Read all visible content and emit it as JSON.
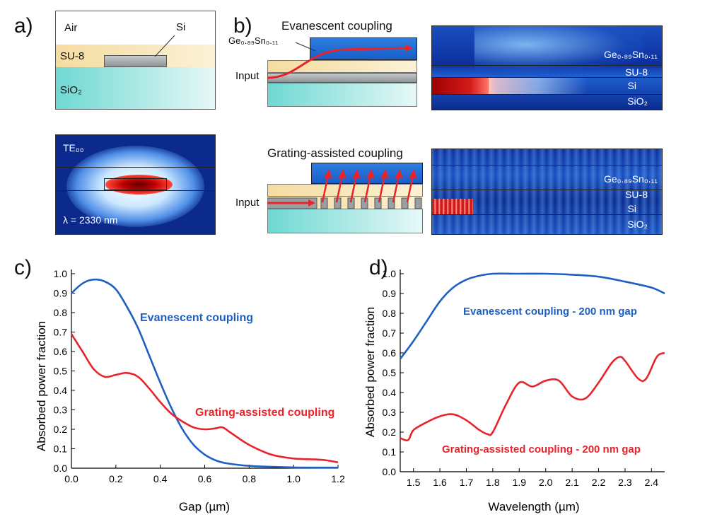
{
  "panels": {
    "a": {
      "letter": "a)",
      "air": "Air",
      "si": "Si",
      "su8": "SU-8",
      "sio2": "SiO₂",
      "mode": "TE₀₀",
      "lambda": "λ = 2330 nm"
    },
    "b": {
      "letter": "b)",
      "evanescent_title": "Evanescent coupling",
      "grating_title": "Grating-assisted coupling",
      "gesn": "Ge₀.₈₉Sn₀.₁₁",
      "input": "Input",
      "field_labels": [
        "Ge₀.₈₉Sn₀.₁₁",
        "SU-8",
        "Si",
        "SiO₂"
      ]
    },
    "c": {
      "letter": "c)",
      "evan_label": "Evanescent coupling",
      "grating_label": "Grating-assisted coupling"
    },
    "d": {
      "letter": "d)",
      "evan_label": "Evanescent coupling - 200 nm gap",
      "grating_label": "Grating-assisted coupling - 200 nm gap"
    }
  },
  "colors": {
    "evan": "#1f5fc4",
    "grating": "#e8232a"
  },
  "chart_data": [
    {
      "type": "line",
      "title": "",
      "xlabel": "Gap (µm)",
      "ylabel": "Absorbed power fraction",
      "xlim": [
        0.0,
        1.2
      ],
      "ylim": [
        0.0,
        1.0
      ],
      "xticks": [
        "0.0",
        "0.2",
        "0.4",
        "0.6",
        "0.8",
        "1.0",
        "1.2"
      ],
      "yticks": [
        "0.0",
        "0.1",
        "0.2",
        "0.3",
        "0.4",
        "0.5",
        "0.6",
        "0.7",
        "0.8",
        "0.9",
        "1.0"
      ],
      "series": [
        {
          "name": "Evanescent coupling",
          "x": [
            0.0,
            0.05,
            0.1,
            0.15,
            0.2,
            0.25,
            0.3,
            0.35,
            0.4,
            0.45,
            0.5,
            0.55,
            0.6,
            0.65,
            0.7,
            0.8,
            0.9,
            1.0,
            1.1,
            1.2
          ],
          "y": [
            0.9,
            0.95,
            0.97,
            0.96,
            0.92,
            0.83,
            0.72,
            0.58,
            0.44,
            0.31,
            0.2,
            0.12,
            0.07,
            0.04,
            0.025,
            0.012,
            0.007,
            0.004,
            0.003,
            0.003
          ]
        },
        {
          "name": "Grating-assisted coupling",
          "x": [
            0.0,
            0.05,
            0.1,
            0.15,
            0.2,
            0.25,
            0.3,
            0.35,
            0.4,
            0.45,
            0.5,
            0.55,
            0.6,
            0.65,
            0.68,
            0.72,
            0.8,
            0.9,
            1.0,
            1.1,
            1.15,
            1.2
          ],
          "y": [
            0.69,
            0.6,
            0.51,
            0.47,
            0.48,
            0.49,
            0.47,
            0.41,
            0.34,
            0.28,
            0.24,
            0.21,
            0.2,
            0.205,
            0.21,
            0.18,
            0.12,
            0.07,
            0.05,
            0.045,
            0.04,
            0.03
          ]
        }
      ]
    },
    {
      "type": "line",
      "title": "",
      "xlabel": "Wavelength (µm)",
      "ylabel": "Absorbed power fraction",
      "xlim": [
        1.45,
        2.45
      ],
      "ylim": [
        0.0,
        1.0
      ],
      "xticks": [
        "1.5",
        "1.6",
        "1.7",
        "1.8",
        "1.9",
        "2.0",
        "2.1",
        "2.2",
        "2.3",
        "2.4"
      ],
      "yticks": [
        "0.0",
        "0.1",
        "0.2",
        "0.3",
        "0.4",
        "0.5",
        "0.6",
        "0.7",
        "0.8",
        "0.9",
        "1.0"
      ],
      "series": [
        {
          "name": "Evanescent coupling - 200 nm gap",
          "x": [
            1.45,
            1.5,
            1.55,
            1.6,
            1.65,
            1.7,
            1.75,
            1.8,
            1.9,
            2.0,
            2.1,
            2.2,
            2.3,
            2.4,
            2.45
          ],
          "y": [
            0.57,
            0.66,
            0.76,
            0.86,
            0.93,
            0.97,
            0.99,
            1.0,
            1.0,
            1.0,
            0.995,
            0.985,
            0.96,
            0.93,
            0.9
          ]
        },
        {
          "name": "Grating-assisted coupling - 200 nm gap",
          "x": [
            1.45,
            1.48,
            1.5,
            1.55,
            1.6,
            1.65,
            1.7,
            1.75,
            1.78,
            1.8,
            1.85,
            1.9,
            1.95,
            2.0,
            2.05,
            2.1,
            2.15,
            2.2,
            2.25,
            2.28,
            2.3,
            2.35,
            2.38,
            2.42,
            2.45
          ],
          "y": [
            0.17,
            0.16,
            0.21,
            0.25,
            0.28,
            0.29,
            0.26,
            0.21,
            0.19,
            0.2,
            0.34,
            0.45,
            0.43,
            0.46,
            0.46,
            0.38,
            0.37,
            0.45,
            0.55,
            0.58,
            0.56,
            0.47,
            0.47,
            0.58,
            0.6
          ]
        }
      ]
    }
  ]
}
